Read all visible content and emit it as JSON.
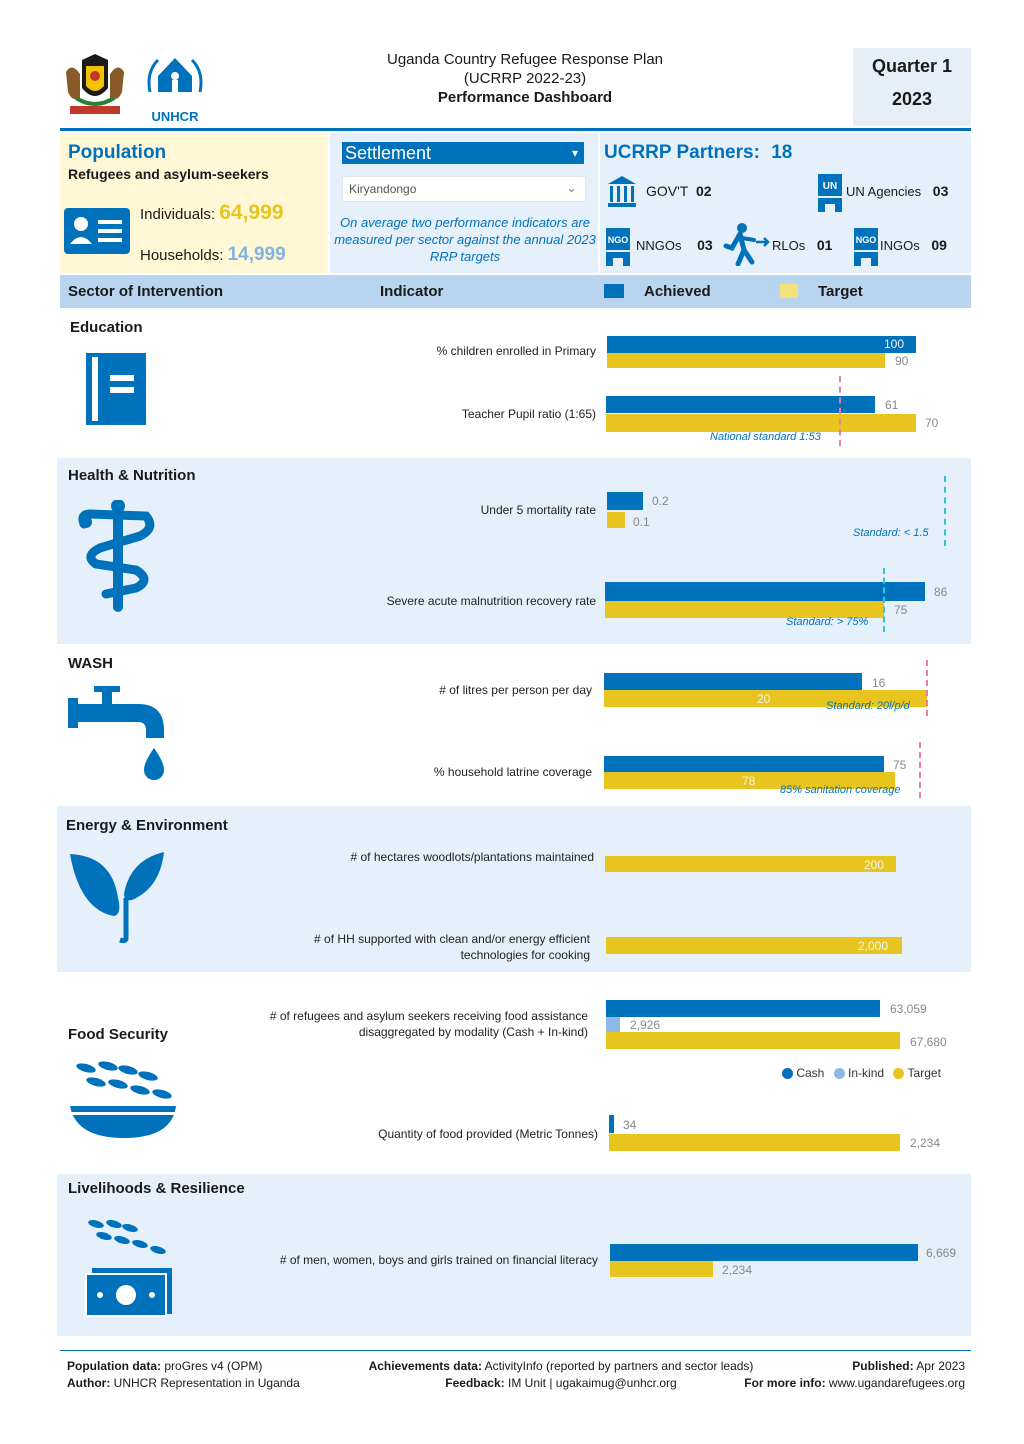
{
  "header": {
    "logo_label": "UNHCR",
    "title_line1": "Uganda Country Refugee Response Plan",
    "title_line2": "(UCRRP 2022-23)",
    "title_line3": "Performance Dashboard",
    "quarter": "Quarter 1",
    "year": "2023"
  },
  "population": {
    "title": "Population",
    "subtitle": "Refugees and asylum-seekers",
    "individuals_label": "Individuals:",
    "individuals_value": "64,999",
    "households_label": "Households:",
    "households_value": "14,999"
  },
  "settlement": {
    "label": "Settlement",
    "selected": "Kiryandongo",
    "note": "On average two performance indicators are measured per sector against the annual 2023 RRP targets"
  },
  "partners": {
    "title": "UCRRP Partners:",
    "total": "18",
    "govt_label": "GOV'T",
    "govt_value": "02",
    "un_label": "UN Agencies",
    "un_value": "03",
    "nngo_label": "NNGOs",
    "nngo_value": "03",
    "rlo_label": "RLOs",
    "rlo_value": "01",
    "ingo_label": "INGOs",
    "ingo_value": "09"
  },
  "columns": {
    "sector": "Sector of Intervention",
    "indicator": "Indicator",
    "achieved": "Achieved",
    "target": "Target"
  },
  "sections": {
    "education": {
      "title": "Education",
      "ind1": "% children enrolled in Primary",
      "ind1_achieved": "100",
      "ind1_target": "90",
      "ind2": "Teacher Pupil ratio (1:65)",
      "ind2_achieved": "61",
      "ind2_target": "70",
      "ind2_standard": "National standard 1:53"
    },
    "health": {
      "title": "Health & Nutrition",
      "ind1": "Under 5 mortality rate",
      "ind1_achieved": "0.2",
      "ind1_target": "0.1",
      "ind1_standard": "Standard: < 1.5",
      "ind2": "Severe acute malnutrition recovery rate",
      "ind2_achieved": "86",
      "ind2_target": "75",
      "ind2_standard": "Standard: > 75%"
    },
    "wash": {
      "title": "WASH",
      "ind1": "# of litres per person per day",
      "ind1_achieved": "16",
      "ind1_target": "20",
      "ind1_standard": "Standard: 20l/p/d",
      "ind2": "% household latrine coverage",
      "ind2_achieved": "75",
      "ind2_target": "78",
      "ind2_standard": "85% sanitation coverage"
    },
    "energy": {
      "title": "Energy & Environment",
      "ind1": "# of hectares woodlots/plantations maintained",
      "ind1_target": "200",
      "ind2_line1": "# of HH supported with clean and/or energy efficient",
      "ind2_line2": "technologies for cooking",
      "ind2_target": "2,000"
    },
    "food": {
      "title": "Food Security",
      "ind1_line1": "# of refugees and asylum seekers receiving food assistance",
      "ind1_line2": "disaggregated by modality (Cash + In-kind)",
      "ind1_cash": "63,059",
      "ind1_inkind": "2,926",
      "ind1_target": "67,680",
      "legend_cash": "Cash",
      "legend_inkind": "In-kind",
      "legend_target": "Target",
      "ind2": "Quantity of food provided (Metric Tonnes)",
      "ind2_achieved": "34",
      "ind2_target": "2,234"
    },
    "livelihoods": {
      "title": "Livelihoods & Resilience",
      "ind1": "# of men, women, boys and girls trained on financial literacy",
      "ind1_achieved": "6,669",
      "ind1_target": "2,234"
    }
  },
  "footer": {
    "pop_label": "Population data:",
    "pop_value": "proGres v4 (OPM)",
    "author_label": "Author:",
    "author_value": "UNHCR Representation in Uganda",
    "ach_label": "Achievements data:",
    "ach_value": "ActivityInfo (reported by partners and sector leads)",
    "feedback_label": "Feedback:",
    "feedback_value": "IM Unit | ugakaimug@unhcr.org",
    "published_label": "Published:",
    "published_value": "Apr 2023",
    "more_label": "For more info:",
    "more_value": "www.ugandarefugees.org"
  },
  "colors": {
    "achieved": "#0072bc",
    "target": "#e8c51e",
    "inkind": "#8fb8e6"
  }
}
